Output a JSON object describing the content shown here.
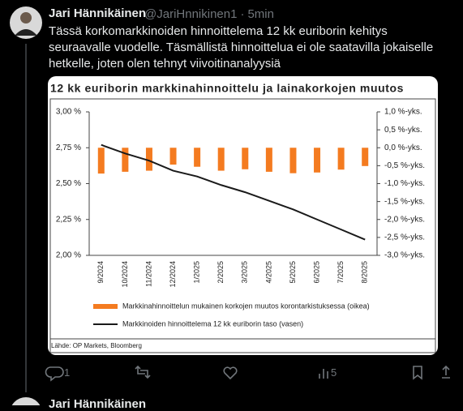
{
  "tweet": {
    "name": "Jari Hännikäinen",
    "handle": "@JariHnnikinen1",
    "separator": "·",
    "time": "5min",
    "text": "Tässä korkomarkkinoiden hinnoittelema 12 kk euriborin kehitys seuraavalle vuodelle. Täsmällistä hinnoittelua ei ole saatavilla jokaiselle hetkelle, joten olen tehnyt viivoitinanalyysiä",
    "replies": "1",
    "views": "5",
    "source": "Lähde: OP Markets, Bloomberg"
  },
  "next_tweet": {
    "name": "Jari Hännikäinen"
  },
  "chart_data": {
    "type": "bar_line",
    "title": "12 kk euriborin markkinahinnoittelu ja lainakorkojen muutos",
    "categories": [
      "9/2024",
      "10/2024",
      "11/2024",
      "12/2024",
      "1/2025",
      "2/2025",
      "3/2025",
      "4/2025",
      "5/2025",
      "6/2025",
      "7/2025",
      "8/2025"
    ],
    "series": [
      {
        "name": "Markkinahinnoittelun mukainen korkojen muutos korontarkistuksessa (oikea)",
        "type": "bar",
        "axis": "y2",
        "color": "#f47b20",
        "values": [
          -0.72,
          -0.67,
          -0.64,
          -0.47,
          -0.53,
          -0.64,
          -0.6,
          -0.67,
          -0.71,
          -0.69,
          -0.61,
          -0.51
        ]
      },
      {
        "name": "Markkinoiden hinnoittelema 12 kk euriborin taso (vasen)",
        "type": "line",
        "color": "#1a1a1a",
        "values": [
          2.77,
          2.71,
          2.66,
          2.59,
          2.55,
          2.49,
          2.44,
          2.38,
          2.32,
          2.25,
          2.18,
          2.11
        ]
      }
    ],
    "ylim": [
      2.0,
      3.0
    ],
    "yticks": [
      {
        "value": 2.0,
        "label": "2,00 %"
      },
      {
        "value": 2.25,
        "label": "2,25 %"
      },
      {
        "value": 2.5,
        "label": "2,50 %"
      },
      {
        "value": 2.75,
        "label": "2,75 %"
      },
      {
        "value": 3.0,
        "label": "3,00 %"
      }
    ],
    "y2lim": [
      -3.0,
      1.0
    ],
    "y2ticks": [
      {
        "value": 1.0,
        "label": "1,0 %-yks."
      },
      {
        "value": 0.5,
        "label": "0,5 %-yks."
      },
      {
        "value": 0.0,
        "label": "0,0 %-yks."
      },
      {
        "value": -0.5,
        "label": "-0,5 %-yks."
      },
      {
        "value": -1.0,
        "label": "-1,0 %-yks."
      },
      {
        "value": -1.5,
        "label": "-1,5 %-yks."
      },
      {
        "value": -2.0,
        "label": "-2,0 %-yks."
      },
      {
        "value": -2.5,
        "label": "-2,5 %-yks."
      },
      {
        "value": -3.0,
        "label": "-3,0 %-yks."
      }
    ]
  }
}
